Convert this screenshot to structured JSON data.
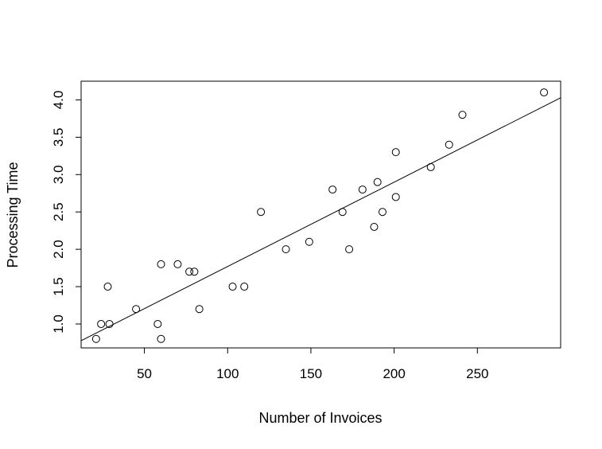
{
  "chart_data": {
    "type": "scatter",
    "title": "",
    "xlabel": "Number of Invoices",
    "ylabel": "Processing Time",
    "xlim": [
      12,
      300
    ],
    "ylim": [
      0.68,
      4.25
    ],
    "x_ticks": [
      50,
      100,
      150,
      200,
      250
    ],
    "y_ticks": [
      1.0,
      1.5,
      2.0,
      2.5,
      3.0,
      3.5,
      4.0
    ],
    "grid": false,
    "legend": "none",
    "points": [
      {
        "x": 21,
        "y": 0.8
      },
      {
        "x": 24,
        "y": 1.0
      },
      {
        "x": 28,
        "y": 1.5
      },
      {
        "x": 29,
        "y": 1.0
      },
      {
        "x": 45,
        "y": 1.2
      },
      {
        "x": 58,
        "y": 1.0
      },
      {
        "x": 60,
        "y": 0.8
      },
      {
        "x": 60,
        "y": 1.8
      },
      {
        "x": 70,
        "y": 1.8
      },
      {
        "x": 77,
        "y": 1.7
      },
      {
        "x": 80,
        "y": 1.7
      },
      {
        "x": 83,
        "y": 1.2
      },
      {
        "x": 103,
        "y": 1.5
      },
      {
        "x": 110,
        "y": 1.5
      },
      {
        "x": 120,
        "y": 2.5
      },
      {
        "x": 135,
        "y": 2.0
      },
      {
        "x": 149,
        "y": 2.1
      },
      {
        "x": 163,
        "y": 2.8
      },
      {
        "x": 169,
        "y": 2.5
      },
      {
        "x": 173,
        "y": 2.0
      },
      {
        "x": 181,
        "y": 2.8
      },
      {
        "x": 188,
        "y": 2.3
      },
      {
        "x": 190,
        "y": 2.9
      },
      {
        "x": 193,
        "y": 2.5
      },
      {
        "x": 201,
        "y": 3.3
      },
      {
        "x": 201,
        "y": 2.7
      },
      {
        "x": 222,
        "y": 3.1
      },
      {
        "x": 233,
        "y": 3.4
      },
      {
        "x": 241,
        "y": 3.8
      },
      {
        "x": 290,
        "y": 4.1
      }
    ],
    "regression_line": {
      "intercept": 0.641,
      "slope": 0.01129
    },
    "colors": {
      "marker": "#000000",
      "line": "#000000",
      "background": "#ffffff"
    }
  }
}
